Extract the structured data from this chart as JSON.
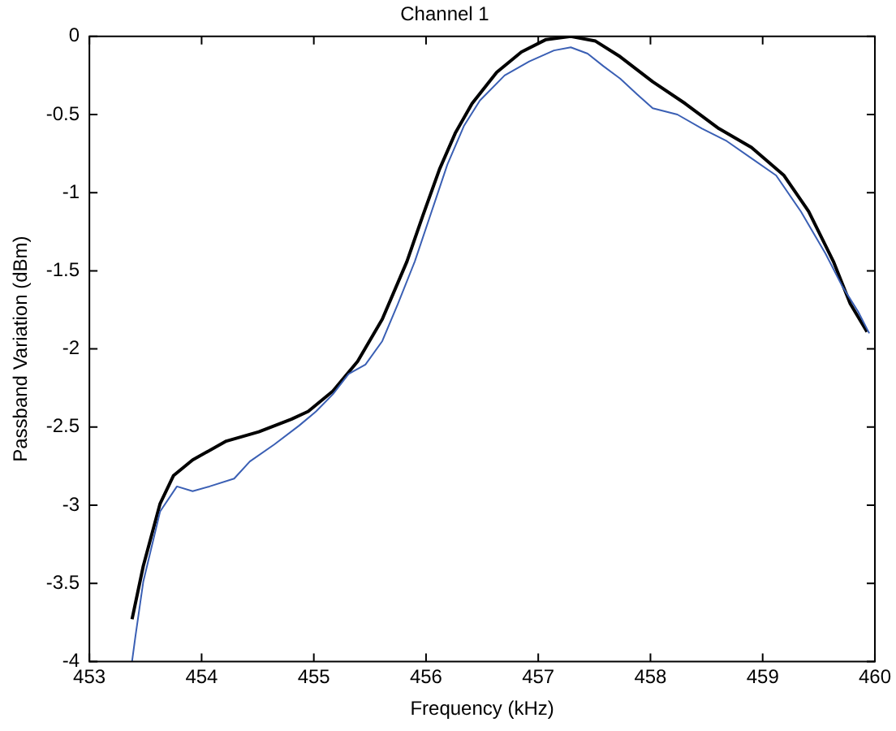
{
  "chart_data": {
    "type": "line",
    "title": "Channel 1",
    "xlabel": "Frequency (kHz)",
    "ylabel": "Passband Variation (dBm)",
    "xlim": [
      453,
      460
    ],
    "xticks": [
      453,
      454,
      455,
      456,
      457,
      458,
      459,
      460
    ],
    "ylim": [
      -4,
      0
    ],
    "yticks": [
      -4,
      -3.5,
      -3,
      -2.5,
      -2,
      -1.5,
      -1,
      -0.5,
      0
    ],
    "grid": false,
    "legend": false,
    "marker": "none",
    "line_style": "solid",
    "series": [
      {
        "color": "#3a5fb4",
        "x": [
          453.38,
          453.41,
          453.48,
          453.63,
          453.78,
          453.92,
          454.07,
          454.29,
          454.43,
          454.65,
          454.87,
          455.02,
          455.17,
          455.31,
          455.46,
          455.61,
          455.75,
          455.9,
          456.05,
          456.19,
          456.34,
          456.48,
          456.7,
          456.92,
          457.14,
          457.29,
          457.44,
          457.58,
          457.73,
          457.88,
          458.02,
          458.24,
          458.46,
          458.68,
          458.9,
          459.12,
          459.34,
          459.56,
          459.71,
          459.85,
          459.95
        ],
        "values": [
          -4,
          -3.84,
          -3.49,
          -3.04,
          -2.88,
          -2.91,
          -2.88,
          -2.83,
          -2.72,
          -2.61,
          -2.49,
          -2.4,
          -2.29,
          -2.16,
          -2.1,
          -1.95,
          -1.71,
          -1.44,
          -1.12,
          -0.82,
          -0.57,
          -0.41,
          -0.25,
          -0.16,
          -0.09,
          -0.07,
          -0.11,
          -0.19,
          -0.27,
          -0.37,
          -0.46,
          -0.5,
          -0.59,
          -0.67,
          -0.78,
          -0.89,
          -1.12,
          -1.39,
          -1.6,
          -1.76,
          -1.9
        ]
      },
      {
        "color": "#000000",
        "x": [
          453.38,
          453.48,
          453.63,
          453.75,
          453.92,
          454.22,
          454.51,
          454.8,
          454.95,
          455.17,
          455.39,
          455.61,
          455.83,
          455.97,
          456.12,
          456.26,
          456.41,
          456.63,
          456.85,
          457.07,
          457.29,
          457.51,
          457.73,
          458.02,
          458.31,
          458.61,
          458.9,
          459.19,
          459.41,
          459.63,
          459.78,
          459.93
        ],
        "values": [
          -3.73,
          -3.39,
          -2.99,
          -2.81,
          -2.71,
          -2.59,
          -2.53,
          -2.45,
          -2.4,
          -2.27,
          -2.08,
          -1.81,
          -1.44,
          -1.15,
          -0.85,
          -0.62,
          -0.43,
          -0.23,
          -0.1,
          -0.02,
          0,
          -0.03,
          -0.13,
          -0.29,
          -0.43,
          -0.59,
          -0.71,
          -0.89,
          -1.12,
          -1.44,
          -1.71,
          -1.89
        ]
      }
    ]
  }
}
